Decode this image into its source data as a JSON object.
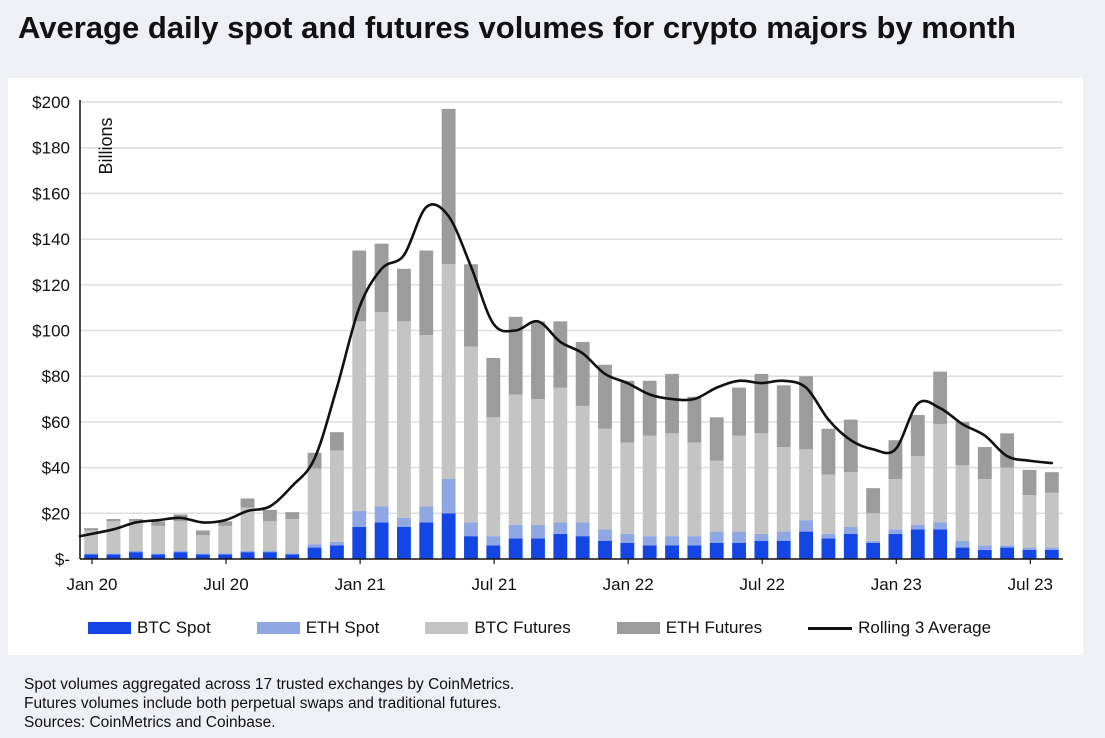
{
  "title": "Average daily spot and futures volumes for crypto majors by month",
  "notes": [
    "Spot volumes aggregated across 17 trusted exchanges by CoinMetrics.",
    "Futures volumes include both perpetual swaps and traditional futures.",
    "Sources: CoinMetrics and Coinbase."
  ],
  "colors": {
    "btc_spot": "#1446e6",
    "eth_spot": "#8fa8e4",
    "btc_futures": "#c4c4c4",
    "eth_futures": "#9c9c9c",
    "rolling": "#111111",
    "grid": "#dedede"
  },
  "legend": [
    {
      "label": "BTC Spot",
      "kind": "swatch",
      "color": "#1446e6"
    },
    {
      "label": "ETH Spot",
      "kind": "swatch",
      "color": "#8fa8e4"
    },
    {
      "label": "BTC Futures",
      "kind": "swatch",
      "color": "#c4c4c4"
    },
    {
      "label": "ETH Futures",
      "kind": "swatch",
      "color": "#9c9c9c"
    },
    {
      "label": "Rolling 3 Average",
      "kind": "line",
      "color": "#111111"
    }
  ],
  "chart_data": {
    "type": "bar",
    "stacked": true,
    "title": "Average daily spot and futures volumes for crypto majors by month",
    "ylabel": "Billions",
    "ylim": [
      0,
      200
    ],
    "yticks": [
      0,
      20,
      40,
      60,
      80,
      100,
      120,
      140,
      160,
      180,
      200
    ],
    "ytick_labels": [
      "$-",
      "$20",
      "$40",
      "$60",
      "$80",
      "$100",
      "$120",
      "$140",
      "$160",
      "$180",
      "$200"
    ],
    "xtick_labels": [
      {
        "index": 0,
        "label": "Jan 20"
      },
      {
        "index": 6,
        "label": "Jul 20"
      },
      {
        "index": 12,
        "label": "Jan 21"
      },
      {
        "index": 18,
        "label": "Jul 21"
      },
      {
        "index": 24,
        "label": "Jan 22"
      },
      {
        "index": 30,
        "label": "Jul 22"
      },
      {
        "index": 36,
        "label": "Jan 23"
      },
      {
        "index": 42,
        "label": "Jul 23"
      }
    ],
    "categories": [
      "Jan 20",
      "Feb 20",
      "Mar 20",
      "Apr 20",
      "May 20",
      "Jun 20",
      "Jul 20",
      "Aug 20",
      "Sep 20",
      "Oct 20",
      "Nov 20",
      "Dec 20",
      "Jan 21",
      "Feb 21",
      "Mar 21",
      "Apr 21",
      "May 21",
      "Jun 21",
      "Jul 21",
      "Aug 21",
      "Sep 21",
      "Oct 21",
      "Nov 21",
      "Dec 21",
      "Jan 22",
      "Feb 22",
      "Mar 22",
      "Apr 22",
      "May 22",
      "Jun 22",
      "Jul 22",
      "Aug 22",
      "Sep 22",
      "Oct 22",
      "Nov 22",
      "Dec 22",
      "Jan 23",
      "Feb 23",
      "Mar 23",
      "Apr 23",
      "May 23",
      "Jun 23",
      "Jul 23",
      "Aug 23"
    ],
    "series": [
      {
        "name": "BTC Spot",
        "values": [
          2,
          2,
          3,
          2,
          3,
          2,
          2,
          3,
          3,
          2,
          5,
          6,
          14,
          16,
          14,
          16,
          20,
          10,
          6,
          9,
          9,
          11,
          10,
          8,
          7,
          6,
          6,
          6,
          7,
          7,
          8,
          8,
          12,
          9,
          11,
          7,
          11,
          13,
          13,
          5,
          4,
          5,
          4,
          4
        ]
      },
      {
        "name": "ETH Spot",
        "values": [
          0.5,
          0.5,
          0.5,
          0.5,
          0.5,
          0.5,
          0.5,
          0.5,
          0.5,
          0.5,
          1.5,
          1.5,
          7,
          7,
          4,
          7,
          15,
          6,
          4,
          6,
          6,
          5,
          6,
          5,
          4,
          4,
          4,
          4,
          5,
          5,
          3,
          4,
          5,
          2,
          3,
          1,
          2,
          2,
          3,
          3,
          2,
          1,
          1,
          1
        ]
      },
      {
        "name": "BTC Futures",
        "values": [
          10,
          14,
          13,
          12,
          13,
          8,
          12,
          19,
          13,
          15,
          33,
          40,
          83,
          85,
          86,
          75,
          94,
          77,
          52,
          57,
          55,
          59,
          51,
          44,
          40,
          44,
          45,
          41,
          31,
          42,
          44,
          37,
          31,
          26,
          24,
          12,
          22,
          30,
          43,
          33,
          29,
          34,
          23,
          24
        ]
      },
      {
        "name": "ETH Futures",
        "values": [
          1,
          1,
          1,
          2,
          3,
          2,
          2,
          4,
          5,
          3,
          7,
          8,
          31,
          30,
          23,
          37,
          68,
          36,
          26,
          34,
          34,
          29,
          28,
          28,
          27,
          24,
          26,
          20,
          19,
          21,
          26,
          27,
          32,
          20,
          23,
          11,
          17,
          18,
          23,
          19,
          14,
          15,
          11,
          9
        ]
      }
    ],
    "rolling_3_average": [
      10,
      13,
      16,
      17,
      18,
      16,
      17,
      21,
      23,
      32,
      44,
      75,
      110,
      127,
      133,
      154,
      150,
      128,
      103,
      100,
      104,
      95,
      90,
      81,
      77,
      72,
      70,
      70,
      75,
      78,
      77,
      78,
      75,
      61,
      52,
      48,
      48,
      68,
      66,
      59,
      54,
      45,
      43,
      42
    ]
  }
}
